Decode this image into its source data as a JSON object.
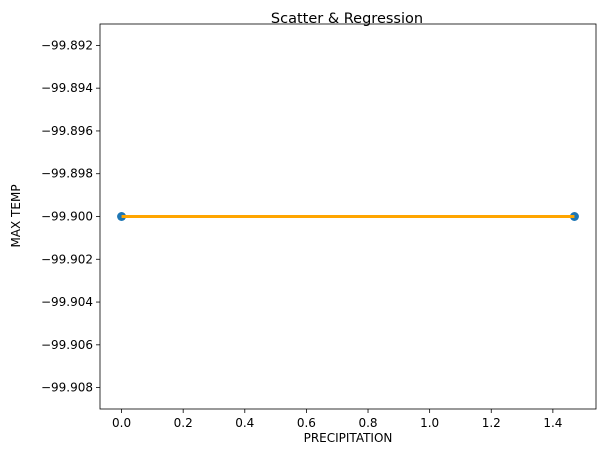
{
  "chart_data": {
    "type": "scatter",
    "title": "Scatter & Regression",
    "xlabel": "PRECIPITATION",
    "ylabel": "MAX TEMP",
    "xlim": [
      -0.07,
      1.54
    ],
    "ylim": [
      -99.909,
      -99.891
    ],
    "x_ticks": [
      0.0,
      0.2,
      0.4,
      0.6,
      0.8,
      1.0,
      1.2,
      1.4
    ],
    "x_tick_labels": [
      "0.0",
      "0.2",
      "0.4",
      "0.6",
      "0.8",
      "1.0",
      "1.2",
      "1.4"
    ],
    "y_ticks": [
      -99.892,
      -99.894,
      -99.896,
      -99.898,
      -99.9,
      -99.902,
      -99.904,
      -99.906,
      -99.908
    ],
    "y_tick_labels": [
      "−99.892",
      "−99.894",
      "−99.896",
      "−99.898",
      "−99.900",
      "−99.902",
      "−99.904",
      "−99.906",
      "−99.908"
    ],
    "series": [
      {
        "kind": "scatter",
        "color": "#1f77b4",
        "points": [
          {
            "x": 0.0,
            "y": -99.9
          },
          {
            "x": 1.47,
            "y": -99.9
          }
        ]
      },
      {
        "kind": "line",
        "color": "#ffa500",
        "points": [
          {
            "x": 0.0,
            "y": -99.9
          },
          {
            "x": 1.47,
            "y": -99.9
          }
        ]
      }
    ],
    "grid": false,
    "legend": "none"
  }
}
